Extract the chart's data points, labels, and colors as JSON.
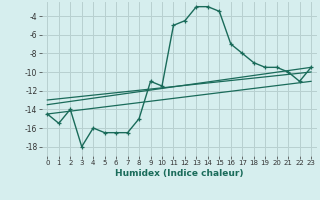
{
  "xlabel": "Humidex (Indice chaleur)",
  "bg_color": "#d6eeee",
  "grid_color": "#b8d0d0",
  "line_color": "#1a6b5a",
  "xlim": [
    -0.5,
    23.5
  ],
  "ylim": [
    -19,
    -2.5
  ],
  "xticks": [
    0,
    1,
    2,
    3,
    4,
    5,
    6,
    7,
    8,
    9,
    10,
    11,
    12,
    13,
    14,
    15,
    16,
    17,
    18,
    19,
    20,
    21,
    22,
    23
  ],
  "yticks": [
    -18,
    -16,
    -14,
    -12,
    -10,
    -8,
    -6,
    -4
  ],
  "main_x": [
    0,
    1,
    2,
    3,
    4,
    5,
    6,
    7,
    8,
    9,
    10,
    11,
    12,
    13,
    14,
    15,
    16,
    17,
    18,
    19,
    20,
    21,
    22,
    23
  ],
  "main_y": [
    -14.5,
    -15.5,
    -14.0,
    -18.0,
    -16.0,
    -16.5,
    -16.5,
    -16.5,
    -15.0,
    -11.0,
    -11.5,
    -5.0,
    -4.5,
    -3.0,
    -3.0,
    -3.5,
    -7.0,
    -8.0,
    -9.0,
    -9.5,
    -9.5,
    -10.0,
    -11.0,
    -9.5
  ],
  "line1_x": [
    0,
    23
  ],
  "line1_y": [
    -13.5,
    -9.5
  ],
  "line2_x": [
    0,
    23
  ],
  "line2_y": [
    -13.0,
    -10.0
  ],
  "line3_x": [
    0,
    23
  ],
  "line3_y": [
    -14.5,
    -11.0
  ]
}
